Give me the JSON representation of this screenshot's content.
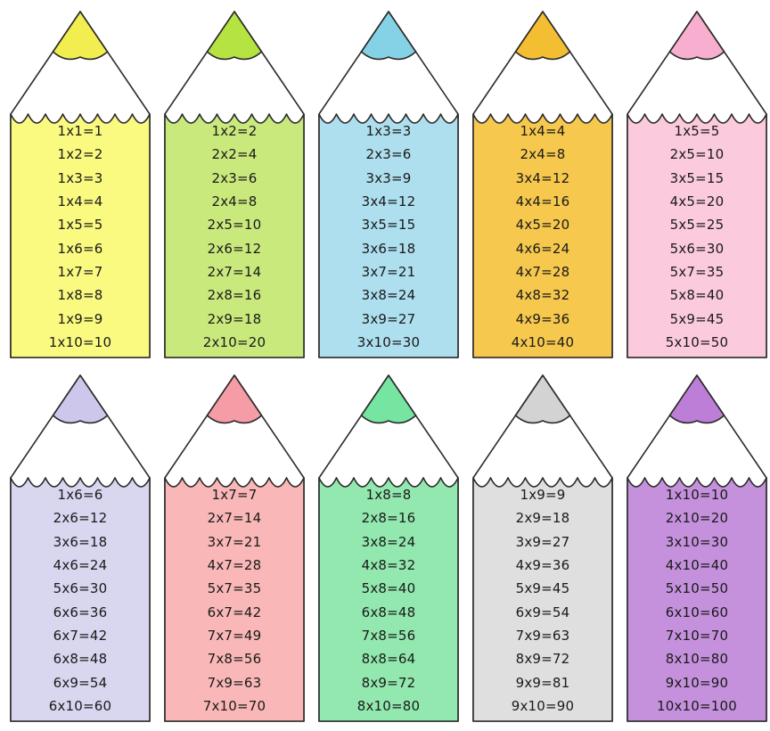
{
  "board": {
    "background": "#ffffff",
    "outline_color": "#2b2b2b",
    "text_color": "#1a1a1a"
  },
  "pencils": [
    {
      "id": "times-1",
      "tip_color": "#F2EE4F",
      "body_color": "#FAFA80",
      "facts": [
        "1x1=1",
        "1x2=2",
        "1x3=3",
        "1x4=4",
        "1x5=5",
        "1x6=6",
        "1x7=7",
        "1x8=8",
        "1x9=9",
        "1x10=10"
      ]
    },
    {
      "id": "times-2",
      "tip_color": "#B5E341",
      "body_color": "#CAE97D",
      "facts": [
        "1x2=2",
        "2x2=4",
        "2x3=6",
        "2x4=8",
        "2x5=10",
        "2x6=12",
        "2x7=14",
        "2x8=16",
        "2x9=18",
        "2x10=20"
      ]
    },
    {
      "id": "times-3",
      "tip_color": "#85D2E6",
      "body_color": "#AEDFEE",
      "facts": [
        "1x3=3",
        "2x3=6",
        "3x3=9",
        "3x4=12",
        "3x5=15",
        "3x6=18",
        "3x7=21",
        "3x8=24",
        "3x9=27",
        "3x10=30"
      ]
    },
    {
      "id": "times-4",
      "tip_color": "#F4BE33",
      "body_color": "#F6C84E",
      "facts": [
        "1x4=4",
        "2x4=8",
        "3x4=12",
        "4x4=16",
        "4x5=20",
        "4x6=24",
        "4x7=28",
        "4x8=32",
        "4x9=36",
        "4x10=40"
      ]
    },
    {
      "id": "times-5",
      "tip_color": "#F8AECE",
      "body_color": "#FBCADD",
      "facts": [
        "1x5=5",
        "2x5=10",
        "3x5=15",
        "4x5=20",
        "5x5=25",
        "5x6=30",
        "5x7=35",
        "5x8=40",
        "5x9=45",
        "5x10=50"
      ]
    },
    {
      "id": "times-6",
      "tip_color": "#CDC7EC",
      "body_color": "#D9D6F0",
      "facts": [
        "1x6=6",
        "2x6=12",
        "3x6=18",
        "4x6=24",
        "5x6=30",
        "6x6=36",
        "6x7=42",
        "6x8=48",
        "6x9=54",
        "6x10=60"
      ]
    },
    {
      "id": "times-7",
      "tip_color": "#F59CA6",
      "body_color": "#F9B7B7",
      "facts": [
        "1x7=7",
        "2x7=14",
        "3x7=21",
        "4x7=28",
        "5x7=35",
        "6x7=42",
        "7x7=49",
        "7x8=56",
        "7x9=63",
        "7x10=70"
      ]
    },
    {
      "id": "times-8",
      "tip_color": "#75E5A1",
      "body_color": "#92E8AE",
      "facts": [
        "1x8=8",
        "2x8=16",
        "3x8=24",
        "4x8=32",
        "5x8=40",
        "6x8=48",
        "7x8=56",
        "8x8=64",
        "8x9=72",
        "8x10=80"
      ]
    },
    {
      "id": "times-9",
      "tip_color": "#D3D3D3",
      "body_color": "#DFDFDF",
      "facts": [
        "1x9=9",
        "2x9=18",
        "3x9=27",
        "4x9=36",
        "5x9=45",
        "6x9=54",
        "7x9=63",
        "8x9=72",
        "9x9=81",
        "9x10=90"
      ]
    },
    {
      "id": "times-10",
      "tip_color": "#BC7ED7",
      "body_color": "#C591DD",
      "facts": [
        "1x10=10",
        "2x10=20",
        "3x10=30",
        "4x10=40",
        "5x10=50",
        "6x10=60",
        "7x10=70",
        "8x10=80",
        "9x10=90",
        "10x10=100"
      ]
    }
  ]
}
